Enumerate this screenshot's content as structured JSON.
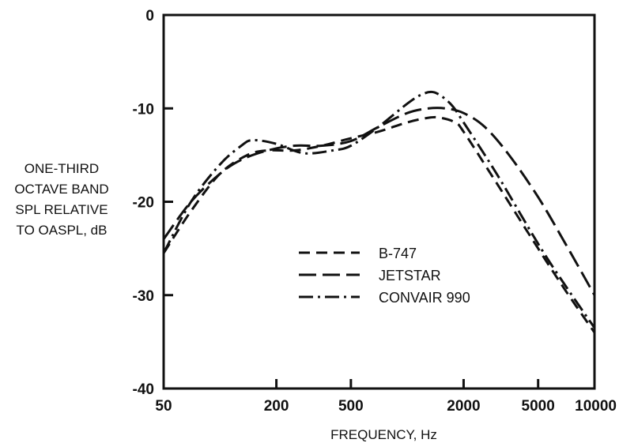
{
  "chart_data": {
    "type": "line",
    "xlabel": "FREQUENCY, Hz",
    "ylabel": [
      "ONE-THIRD",
      "OCTAVE BAND",
      "SPL RELATIVE",
      "TO OASPL, dB"
    ],
    "xscale": "log",
    "xlim": [
      50,
      10000
    ],
    "ylim": [
      -40,
      0
    ],
    "x_ticks": [
      50,
      200,
      500,
      2000,
      5000,
      10000
    ],
    "x_tick_labels": [
      "50",
      "200",
      "500",
      "2000",
      "5000",
      "10000"
    ],
    "y_ticks": [
      0,
      -10,
      -20,
      -30,
      -40
    ],
    "y_tick_labels": [
      "0",
      "-10",
      "-20",
      "-30",
      "-40"
    ],
    "grid": false,
    "legend_position": "lower-center",
    "series": [
      {
        "name": "B-747",
        "dash": "dash",
        "points": [
          [
            50,
            -25.5
          ],
          [
            70,
            -21
          ],
          [
            100,
            -17
          ],
          [
            140,
            -15
          ],
          [
            180,
            -14.5
          ],
          [
            250,
            -14.5
          ],
          [
            350,
            -14
          ],
          [
            500,
            -13.2
          ],
          [
            700,
            -12.5
          ],
          [
            1000,
            -11.5
          ],
          [
            1300,
            -11
          ],
          [
            1500,
            -11
          ],
          [
            1800,
            -11.5
          ],
          [
            2000,
            -12.5
          ],
          [
            3000,
            -18
          ],
          [
            5000,
            -25
          ],
          [
            7000,
            -29.5
          ],
          [
            10000,
            -34
          ]
        ]
      },
      {
        "name": "JETSTAR",
        "dash": "longdash",
        "points": [
          [
            50,
            -24
          ],
          [
            70,
            -20
          ],
          [
            100,
            -17
          ],
          [
            130,
            -15.5
          ],
          [
            180,
            -14.5
          ],
          [
            250,
            -14
          ],
          [
            350,
            -14
          ],
          [
            500,
            -13.5
          ],
          [
            700,
            -12
          ],
          [
            1000,
            -10.5
          ],
          [
            1300,
            -10
          ],
          [
            1600,
            -10
          ],
          [
            2000,
            -10.5
          ],
          [
            2600,
            -12
          ],
          [
            3500,
            -15
          ],
          [
            5000,
            -19.5
          ],
          [
            7000,
            -24.5
          ],
          [
            10000,
            -30
          ]
        ]
      },
      {
        "name": "CONVAIR 990",
        "dash": "dashdot",
        "points": [
          [
            50,
            -25.5
          ],
          [
            70,
            -20
          ],
          [
            100,
            -16
          ],
          [
            130,
            -14
          ],
          [
            150,
            -13.4
          ],
          [
            200,
            -13.8
          ],
          [
            280,
            -14.8
          ],
          [
            400,
            -14.5
          ],
          [
            500,
            -14
          ],
          [
            700,
            -12
          ],
          [
            1000,
            -9.5
          ],
          [
            1200,
            -8.5
          ],
          [
            1400,
            -8.3
          ],
          [
            1700,
            -9.5
          ],
          [
            2000,
            -11.5
          ],
          [
            3000,
            -17
          ],
          [
            5000,
            -24.5
          ],
          [
            7000,
            -29
          ],
          [
            10000,
            -33.5
          ]
        ]
      }
    ]
  }
}
